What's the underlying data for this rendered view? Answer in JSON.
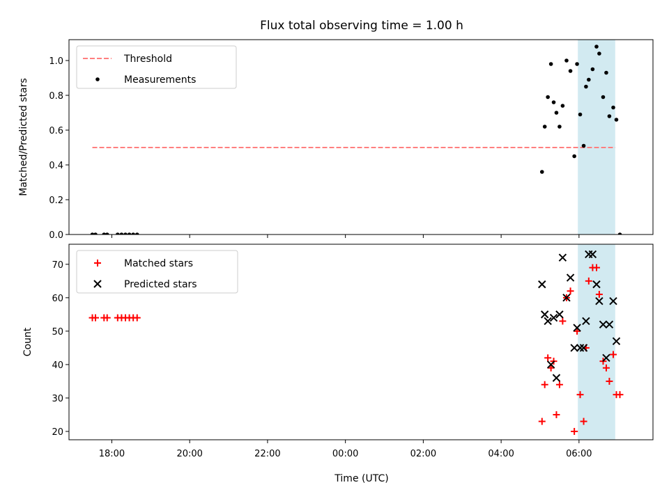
{
  "chart_data": {
    "title": "Flux total observing time = 1.00 h",
    "shared_x": {
      "label": "Time (UTC)",
      "range_hours": [
        -7.1,
        7.9
      ],
      "note_origin": "00:00 day 2",
      "ticks": [
        {
          "value": -6,
          "label": "18:00"
        },
        {
          "value": -4,
          "label": "20:00"
        },
        {
          "value": -2,
          "label": "22:00"
        },
        {
          "value": 0,
          "label": "00:00"
        },
        {
          "value": 2,
          "label": "02:00"
        },
        {
          "value": 4,
          "label": "04:00"
        },
        {
          "value": 6,
          "label": "06:00"
        }
      ]
    },
    "highlight": {
      "x0": 5.97,
      "x1": 6.93,
      "color": "#add8e6"
    },
    "panels": [
      {
        "type": "scatter",
        "ylabel": "Matched/Predicted stars",
        "ylim": [
          0,
          1.12
        ],
        "yticks": [
          {
            "value": 0.0,
            "label": "0.0"
          },
          {
            "value": 0.2,
            "label": "0.2"
          },
          {
            "value": 0.4,
            "label": "0.4"
          },
          {
            "value": 0.6,
            "label": "0.6"
          },
          {
            "value": 0.8,
            "label": "0.8"
          },
          {
            "value": 1.0,
            "label": "1.0"
          }
        ],
        "legend": [
          {
            "label": "Threshold",
            "marker": "dashed-line",
            "color": "#ff7f7f"
          },
          {
            "label": "Measurements",
            "marker": "dot",
            "color": "#000000"
          }
        ],
        "threshold": {
          "x0": -6.5,
          "x1": 6.93,
          "y": 0.5,
          "color": "#ff7f7f"
        },
        "measurements": {
          "color": "#000000",
          "points": [
            [
              -6.5,
              0
            ],
            [
              -6.42,
              0
            ],
            [
              -6.2,
              0
            ],
            [
              -6.12,
              0
            ],
            [
              -5.85,
              0
            ],
            [
              -5.75,
              0
            ],
            [
              -5.65,
              0
            ],
            [
              -5.55,
              0
            ],
            [
              -5.45,
              0
            ],
            [
              -5.35,
              0
            ],
            [
              5.05,
              0.36
            ],
            [
              5.12,
              0.62
            ],
            [
              5.2,
              0.79
            ],
            [
              5.28,
              0.98
            ],
            [
              5.35,
              0.76
            ],
            [
              5.42,
              0.7
            ],
            [
              5.5,
              0.62
            ],
            [
              5.58,
              0.74
            ],
            [
              5.68,
              1.0
            ],
            [
              5.78,
              0.94
            ],
            [
              5.88,
              0.45
            ],
            [
              5.95,
              0.98
            ],
            [
              6.03,
              0.69
            ],
            [
              6.12,
              0.51
            ],
            [
              6.18,
              0.85
            ],
            [
              6.25,
              0.89
            ],
            [
              6.35,
              0.95
            ],
            [
              6.45,
              1.08
            ],
            [
              6.52,
              1.04
            ],
            [
              6.62,
              0.79
            ],
            [
              6.7,
              0.93
            ],
            [
              6.78,
              0.68
            ],
            [
              6.88,
              0.73
            ],
            [
              6.96,
              0.66
            ],
            [
              7.05,
              0.0
            ]
          ]
        }
      },
      {
        "type": "scatter",
        "ylabel": "Count",
        "ylim": [
          17.5,
          76
        ],
        "yticks": [
          {
            "value": 20,
            "label": "20"
          },
          {
            "value": 30,
            "label": "30"
          },
          {
            "value": 40,
            "label": "40"
          },
          {
            "value": 50,
            "label": "50"
          },
          {
            "value": 60,
            "label": "60"
          },
          {
            "value": 70,
            "label": "70"
          }
        ],
        "legend": [
          {
            "label": "Matched stars",
            "marker": "plus",
            "color": "#ff0000"
          },
          {
            "label": "Predicted stars",
            "marker": "cross",
            "color": "#000000"
          }
        ],
        "series": [
          {
            "name": "Matched stars",
            "marker": "plus",
            "color": "#ff0000",
            "points": [
              [
                -6.5,
                54
              ],
              [
                -6.42,
                54
              ],
              [
                -6.2,
                54
              ],
              [
                -6.12,
                54
              ],
              [
                -5.85,
                54
              ],
              [
                -5.75,
                54
              ],
              [
                -5.65,
                54
              ],
              [
                -5.55,
                54
              ],
              [
                -5.45,
                54
              ],
              [
                -5.35,
                54
              ],
              [
                5.05,
                23
              ],
              [
                5.12,
                34
              ],
              [
                5.2,
                42
              ],
              [
                5.28,
                39
              ],
              [
                5.35,
                41
              ],
              [
                5.42,
                25
              ],
              [
                5.5,
                34
              ],
              [
                5.58,
                53
              ],
              [
                5.68,
                60
              ],
              [
                5.78,
                62
              ],
              [
                5.88,
                20
              ],
              [
                5.95,
                50
              ],
              [
                6.03,
                31
              ],
              [
                6.12,
                23
              ],
              [
                6.18,
                45
              ],
              [
                6.25,
                65
              ],
              [
                6.35,
                69
              ],
              [
                6.45,
                69
              ],
              [
                6.52,
                61
              ],
              [
                6.62,
                41
              ],
              [
                6.7,
                39
              ],
              [
                6.78,
                35
              ],
              [
                6.88,
                43
              ],
              [
                6.96,
                31
              ],
              [
                7.05,
                31
              ]
            ]
          },
          {
            "name": "Predicted stars",
            "marker": "cross",
            "color": "#000000",
            "points": [
              [
                5.05,
                64
              ],
              [
                5.12,
                55
              ],
              [
                5.2,
                53
              ],
              [
                5.28,
                40
              ],
              [
                5.35,
                54
              ],
              [
                5.42,
                36
              ],
              [
                5.5,
                55
              ],
              [
                5.58,
                72
              ],
              [
                5.68,
                60
              ],
              [
                5.78,
                66
              ],
              [
                5.88,
                45
              ],
              [
                5.95,
                51
              ],
              [
                6.03,
                45
              ],
              [
                6.12,
                45
              ],
              [
                6.18,
                53
              ],
              [
                6.25,
                73
              ],
              [
                6.35,
                73
              ],
              [
                6.45,
                64
              ],
              [
                6.52,
                59
              ],
              [
                6.62,
                52
              ],
              [
                6.7,
                42
              ],
              [
                6.78,
                52
              ],
              [
                6.88,
                59
              ],
              [
                6.96,
                47
              ]
            ]
          }
        ]
      }
    ]
  }
}
